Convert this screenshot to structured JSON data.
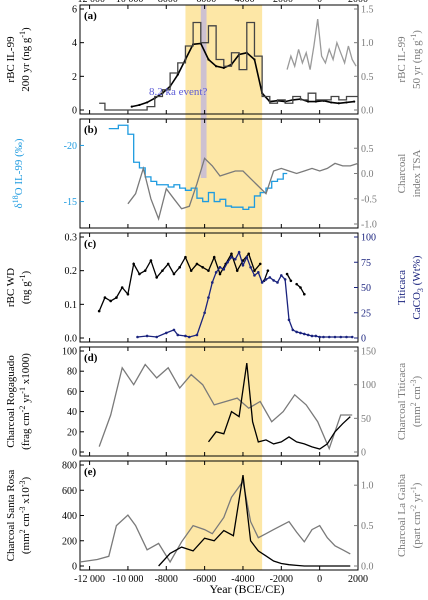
{
  "figure": {
    "xlabel": "Year (BCE/CE)",
    "x_ticks": [
      -12000,
      -10000,
      -8000,
      -6000,
      -4000,
      -2000,
      0,
      2000
    ],
    "x_tick_labels": [
      "-12 000",
      "-10 000",
      "-8000",
      "-6000",
      "-4000",
      "-2000",
      "0",
      "2000"
    ],
    "xlim": [
      -12500,
      2000
    ],
    "shaded_band": [
      -7000,
      -3000
    ],
    "shade_color": "#fde7a6",
    "event_band": [
      -6200,
      -5900
    ],
    "event_color": "#c8bcd6"
  },
  "chart_data": [
    {
      "panel": "(a)",
      "type": "line",
      "event_label": "8.2 ka event?",
      "left": {
        "label_line1": "rBC IL-99",
        "label_line2": "200 yr (ng g",
        "label_sup": "-1",
        "label_close": ")",
        "ylim": [
          0,
          6
        ],
        "ticks": [
          0,
          2,
          4,
          6
        ],
        "color": "#000000"
      },
      "right": {
        "label_line1": "rBC IL-99",
        "label_line2": "50 yr (ng g",
        "label_sup": "-1",
        "label_close": ")",
        "ylim": [
          0,
          1.5
        ],
        "ticks": [
          0,
          0.5,
          1,
          1.5
        ],
        "tick_labels": [
          "0.0",
          "0.5",
          "1.0",
          "1.5"
        ],
        "color": "#7a7a7a"
      },
      "series": [
        {
          "axis": "left",
          "style": "dots",
          "color": "#000000",
          "x": [
            -9800,
            -9400,
            -9000,
            -8600,
            -8200,
            -7800,
            -7400,
            -7000,
            -6600,
            -6200,
            -5800,
            -5400,
            -5000,
            -4600,
            -4200,
            -3800,
            -3400,
            -3000,
            -2600,
            -2200,
            -1800,
            -1400,
            -1000,
            -600,
            -200,
            200,
            600,
            1000,
            1400,
            1800
          ],
          "y": [
            0.2,
            0.3,
            0.45,
            0.7,
            1.0,
            1.4,
            2.1,
            3.0,
            3.9,
            3.95,
            3.0,
            2.6,
            2.5,
            2.7,
            3.3,
            3.4,
            3.0,
            1.0,
            0.5,
            0.55,
            0.5,
            0.6,
            0.65,
            0.5,
            0.5,
            0.55,
            0.45,
            0.4,
            0.45,
            0.5
          ]
        },
        {
          "axis": "right",
          "style": "step",
          "color": "#444444",
          "x": [
            -11500,
            -11200,
            -9000,
            -8600,
            -8200,
            -7800,
            -7400,
            -7000,
            -6600,
            -6200,
            -5800,
            -5400,
            -5000,
            -4600,
            -4200,
            -3800,
            -3400,
            -3000,
            -2600,
            -2200,
            -1800,
            -1400,
            -1000,
            -600,
            -200,
            200,
            600,
            1000,
            1400,
            1800
          ],
          "y": [
            0.1,
            0.0,
            0.05,
            0.2,
            0.3,
            0.55,
            0.7,
            0.95,
            1.3,
            1.0,
            1.25,
            0.75,
            0.65,
            0.85,
            0.6,
            1.3,
            0.8,
            0.2,
            0.1,
            0.15,
            0.1,
            0.2,
            0.15,
            0.25,
            0.15,
            0.15,
            0.2,
            0.15,
            0.2,
            0.2
          ]
        },
        {
          "axis": "right",
          "style": "line",
          "color": "#9a9a9a",
          "x": [
            -1700,
            -1500,
            -1300,
            -1100,
            -900,
            -700,
            -500,
            -300,
            -100,
            100,
            300,
            500,
            700,
            900,
            1100,
            1300,
            1500,
            1700,
            1900
          ],
          "y": [
            0.6,
            0.8,
            0.65,
            0.9,
            0.7,
            0.85,
            0.6,
            0.95,
            1.35,
            0.8,
            0.7,
            0.9,
            0.75,
            1.0,
            0.85,
            0.7,
            0.95,
            0.75,
            0.65
          ]
        }
      ]
    },
    {
      "panel": "(b)",
      "type": "line",
      "left": {
        "label_html_delta": "δ",
        "label_sup": "18",
        "label_rest": "O IL-99 (‰)",
        "ylim": [
          -22,
          -13
        ],
        "ticks": [
          -20,
          -15
        ],
        "color": "#1e9be0",
        "inverted": true
      },
      "right": {
        "label_line1": "Charcoal",
        "label_line2": "index TSA",
        "ylim": [
          -1.0,
          1.0
        ],
        "ticks": [
          -1.0,
          -0.5,
          0.0,
          0.5
        ],
        "tick_labels": [
          "-1.0",
          "-0.5",
          "0.0",
          "0.5"
        ],
        "color": "#7a7a7a"
      },
      "series": [
        {
          "axis": "left",
          "style": "step",
          "color": "#1e9be0",
          "x": [
            -11000,
            -10500,
            -10000,
            -9700,
            -9400,
            -9100,
            -8800,
            -8500,
            -8200,
            -7900,
            -7600,
            -7300,
            -7000,
            -6700,
            -6400,
            -6100,
            -5800,
            -5500,
            -5200,
            -4900,
            -4600,
            -4300,
            -4000,
            -3700,
            -3400,
            -3100,
            -2800,
            -2500,
            -2200,
            -1900
          ],
          "y": [
            -21.5,
            -21.8,
            -21.0,
            -18.5,
            -18.0,
            -17.2,
            -16.8,
            -16.5,
            -16.5,
            -16.3,
            -16.5,
            -16.2,
            -16.0,
            -16.2,
            -15.3,
            -15.0,
            -15.8,
            -15.0,
            -15.2,
            -14.6,
            -14.5,
            -14.5,
            -14.3,
            -14.5,
            -15.5,
            -15.8,
            -16.2,
            -16.8,
            -17.0,
            -17.5
          ]
        },
        {
          "axis": "right",
          "style": "line",
          "color": "#7a7a7a",
          "x": [
            -10000,
            -9600,
            -9200,
            -8800,
            -8400,
            -8000,
            -7600,
            -7200,
            -6800,
            -6400,
            -6000,
            -5600,
            -5200,
            -4800,
            -4400,
            -4000,
            -3600,
            -3200,
            -2800,
            -2400,
            -2000,
            -1600,
            -1200,
            -800,
            -400,
            0,
            400,
            800,
            1200,
            1600,
            2000
          ],
          "y": [
            -0.6,
            -0.4,
            0.1,
            -0.5,
            -0.9,
            -0.3,
            -0.5,
            -0.7,
            -0.65,
            -0.2,
            0.3,
            0.15,
            -0.05,
            0.0,
            0.05,
            0.05,
            -0.1,
            -0.25,
            -0.4,
            0.05,
            0.1,
            0.05,
            0.0,
            0.05,
            0.1,
            0.05,
            0.1,
            0.2,
            0.15,
            0.15,
            0.2
          ]
        }
      ]
    },
    {
      "panel": "(c)",
      "type": "line",
      "left": {
        "label_line1": "rBC WD",
        "label_line2": "(ng g",
        "label_sup": "-1",
        "label_close": ")",
        "ylim": [
          0,
          0.3
        ],
        "ticks": [
          0,
          0.1,
          0.2,
          0.3
        ],
        "tick_labels": [
          "0.0",
          "0.1",
          "0.2",
          "0.3"
        ],
        "color": "#000000"
      },
      "right": {
        "label_line1": "Titicaca",
        "label_line2": "CaCO",
        "label_sub": "3",
        "label_rest": " (Wt%)",
        "ylim": [
          0,
          100
        ],
        "ticks": [
          0,
          25,
          50,
          75,
          100
        ],
        "color": "#1a237e"
      },
      "series": [
        {
          "axis": "left",
          "style": "dotline",
          "color": "#000000",
          "x": [
            -11500,
            -11200,
            -10900,
            -10600,
            -10300,
            -10000,
            -9700,
            -9400,
            -9100,
            -8800,
            -8500,
            -8200,
            -7900,
            -7600,
            -7300,
            -7000,
            -6700,
            -6400,
            -6100,
            -5800,
            -5500,
            -5200,
            -4900,
            -4600,
            -4300,
            -4000,
            -3700,
            -3400,
            -3100
          ],
          "y": [
            0.08,
            0.12,
            0.11,
            0.12,
            0.15,
            0.13,
            0.22,
            0.19,
            0.2,
            0.23,
            0.18,
            0.2,
            0.22,
            0.19,
            0.21,
            0.24,
            0.2,
            0.22,
            0.21,
            0.2,
            0.24,
            0.19,
            0.22,
            0.25,
            0.2,
            0.23,
            0.25,
            0.2,
            0.22
          ]
        },
        {
          "axis": "left",
          "style": "dotline",
          "color": "#000000",
          "x": [
            -2900,
            -2700
          ],
          "y": [
            0.17,
            0.2
          ]
        },
        {
          "axis": "left",
          "style": "dotline",
          "color": "#000000",
          "x": [
            -1700,
            -1500
          ],
          "y": [
            0.19,
            0.17
          ]
        },
        {
          "axis": "left",
          "style": "dotline",
          "color": "#000000",
          "x": [
            -1200,
            -1000,
            -800
          ],
          "y": [
            0.16,
            0.15,
            0.13
          ]
        },
        {
          "axis": "right",
          "style": "dotline",
          "color": "#1a237e",
          "x": [
            -9500,
            -9000,
            -8500,
            -8000,
            -7600,
            -7400,
            -7000,
            -6800,
            -6400,
            -6000,
            -5800,
            -5600,
            -5400,
            -5200,
            -5000,
            -4800,
            -4600,
            -4400,
            -4200,
            -4000,
            -3800,
            -3600,
            -3400,
            -3200,
            -3000,
            -2800,
            -2600,
            -2400,
            -2200,
            -2000,
            -1800,
            -1600,
            -1400,
            -1200,
            -1000,
            -800,
            -600,
            -400,
            -200,
            0,
            200,
            500,
            800,
            1100,
            1400,
            1700
          ],
          "y": [
            1,
            2,
            1,
            5,
            8,
            3,
            2,
            1,
            3,
            25,
            40,
            55,
            65,
            70,
            68,
            75,
            80,
            78,
            85,
            72,
            80,
            70,
            62,
            65,
            55,
            58,
            60,
            57,
            55,
            62,
            58,
            18,
            8,
            6,
            5,
            4,
            3,
            2,
            2,
            1,
            1,
            1,
            1,
            1,
            1,
            1
          ]
        }
      ]
    },
    {
      "panel": "(d)",
      "type": "line",
      "left": {
        "label_line1": "Charcoal Rogaguado",
        "label_line2": "(frag cm",
        "label_sup": "-2",
        "label_mid": " yr",
        "label_sup2": "-1",
        "label_rest": " x1000)",
        "ylim": [
          0,
          100
        ],
        "ticks": [
          0,
          20,
          40,
          60,
          80,
          100
        ],
        "color": "#000000"
      },
      "right": {
        "label_line1": "Charcoal Titicaca",
        "label_line2": "(mm",
        "label_sup": "2",
        "label_mid": " cm",
        "label_sup2": "-3",
        "label_rest": ")",
        "ylim": [
          0,
          150
        ],
        "ticks": [
          0,
          50,
          100,
          150
        ],
        "color": "#7a7a7a"
      },
      "series": [
        {
          "axis": "right",
          "style": "line",
          "color": "#7a7a7a",
          "x": [
            -11500,
            -10900,
            -10300,
            -9700,
            -9100,
            -8500,
            -7900,
            -7300,
            -6700,
            -6100,
            -5500,
            -4900,
            -4300,
            -3700,
            -3100,
            -2500,
            -1900,
            -1300,
            -700,
            -100,
            500,
            1100,
            1700
          ],
          "y": [
            8,
            55,
            125,
            100,
            130,
            110,
            125,
            95,
            115,
            100,
            70,
            75,
            80,
            65,
            75,
            45,
            60,
            85,
            70,
            45,
            5,
            55,
            55
          ]
        },
        {
          "axis": "left",
          "style": "line",
          "color": "#000000",
          "x": [
            -5800,
            -5400,
            -5000,
            -4600,
            -4200,
            -3800,
            -3500,
            -3200,
            -2800,
            -2400,
            -2000,
            -1600,
            -1200,
            -800,
            -400,
            0,
            400,
            800,
            1200,
            1600
          ],
          "y": [
            10,
            20,
            18,
            40,
            35,
            88,
            30,
            10,
            12,
            8,
            10,
            15,
            10,
            8,
            5,
            3,
            8,
            20,
            28,
            35
          ]
        }
      ]
    },
    {
      "panel": "(e)",
      "type": "line",
      "left": {
        "label_line1": "Charcoal Santa Rosa",
        "label_line2": "(mm",
        "label_sup": "2",
        "label_mid": " cm",
        "label_sup2": "-3",
        "label_rest": " x10",
        "label_sup3": "-3",
        "label_close": ")",
        "ylim": [
          0,
          800
        ],
        "ticks": [
          0,
          200,
          400,
          600,
          800
        ],
        "color": "#000000"
      },
      "right": {
        "label_line1": "Charcoal La Gaiba",
        "label_line2": "(part cm",
        "label_sup": "-2",
        "label_mid": " yr",
        "label_sup2": "-1",
        "label_rest": ")",
        "ylim": [
          0,
          1.25
        ],
        "ticks": [
          0,
          0.5,
          1.0
        ],
        "tick_labels": [
          "0.0",
          "0.5",
          "1.0"
        ],
        "color": "#7a7a7a"
      },
      "series": [
        {
          "axis": "right",
          "style": "line",
          "color": "#7a7a7a",
          "x": [
            -12500,
            -11600,
            -11000,
            -10600,
            -10000,
            -9600,
            -9000,
            -8400,
            -7800,
            -7200,
            -6600,
            -6000,
            -5600,
            -5000,
            -4600,
            -4000,
            -3600,
            -3200,
            -2800,
            -2400,
            -2000,
            -1600,
            -1200,
            -800,
            -400,
            0,
            400,
            800,
            1200,
            1600
          ],
          "y": [
            0.05,
            0.08,
            0.12,
            0.5,
            0.63,
            0.5,
            0.2,
            0.28,
            0.05,
            0.3,
            0.5,
            0.45,
            0.4,
            0.6,
            0.85,
            1.05,
            0.55,
            0.35,
            0.4,
            0.45,
            0.5,
            0.55,
            0.42,
            0.3,
            0.45,
            0.5,
            0.35,
            0.25,
            0.2,
            0.15
          ]
        },
        {
          "axis": "left",
          "style": "line",
          "color": "#000000",
          "x": [
            -8400,
            -7800,
            -7200,
            -6600,
            -6000,
            -5500,
            -5000,
            -4500,
            -4000,
            -3600,
            -3200,
            -2800,
            -2400,
            -2000,
            -1600,
            -1200,
            -800,
            -400,
            0,
            400,
            800,
            1200,
            1600
          ],
          "y": [
            0,
            100,
            150,
            120,
            220,
            200,
            280,
            240,
            720,
            200,
            120,
            80,
            40,
            20,
            10,
            5,
            0,
            0,
            0,
            0,
            0,
            0,
            0
          ]
        }
      ]
    }
  ]
}
